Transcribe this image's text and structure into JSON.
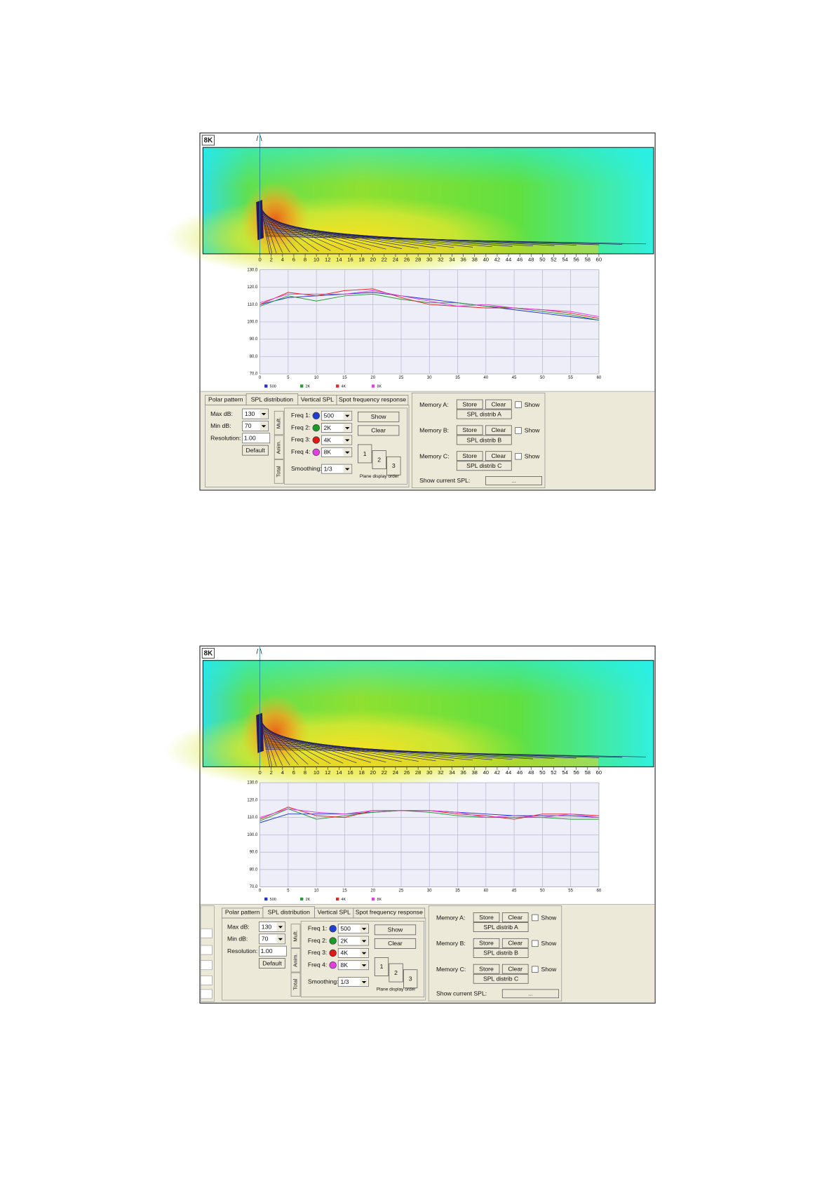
{
  "panels": [
    {
      "heatmap_label": "8K",
      "ruler_ticks": [
        0,
        2,
        4,
        6,
        8,
        10,
        12,
        14,
        16,
        18,
        20,
        22,
        24,
        26,
        28,
        30,
        32,
        34,
        36,
        38,
        40,
        42,
        44,
        46,
        48,
        50,
        52,
        54,
        56,
        58,
        60
      ]
    },
    {
      "heatmap_label": "8K",
      "ruler_ticks": [
        0,
        2,
        4,
        6,
        8,
        10,
        12,
        14,
        16,
        18,
        20,
        22,
        24,
        26,
        28,
        30,
        32,
        34,
        36,
        38,
        40,
        42,
        44,
        46,
        48,
        50,
        52,
        54,
        56,
        58,
        60
      ]
    }
  ],
  "chart_data": [
    {
      "type": "line",
      "x": [
        0,
        5,
        10,
        15,
        20,
        25,
        30,
        35,
        40,
        45,
        50,
        55,
        60
      ],
      "xlim": [
        0,
        60
      ],
      "xticks": [
        0,
        5,
        10,
        15,
        20,
        25,
        30,
        35,
        40,
        45,
        50,
        55,
        60
      ],
      "ylim": [
        70,
        130
      ],
      "yticks": [
        {
          "value": 130,
          "label": "130.0"
        },
        {
          "value": 120,
          "label": "120.0"
        },
        {
          "value": 110,
          "label": "110.0"
        },
        {
          "value": 100,
          "label": "100.0"
        },
        {
          "value": 90,
          "label": "90.0"
        },
        {
          "value": 80,
          "label": "80.0"
        },
        {
          "value": 70,
          "label": "70.0"
        }
      ],
      "grid": true,
      "series": [
        {
          "name": "500",
          "color": "#2030d0",
          "values": [
            110,
            114,
            115,
            116,
            117,
            115,
            113,
            111,
            109,
            107,
            105,
            103,
            101
          ]
        },
        {
          "name": "2K",
          "color": "#2a9a3a",
          "values": [
            109,
            115,
            112,
            115,
            116,
            113,
            111,
            111,
            109,
            108,
            106,
            104,
            101
          ]
        },
        {
          "name": "4K",
          "color": "#e02828",
          "values": [
            110,
            117,
            115,
            118,
            119,
            114,
            110,
            109,
            108,
            108,
            107,
            105,
            102
          ]
        },
        {
          "name": "8K",
          "color": "#e040e0",
          "values": [
            111,
            116,
            116,
            116,
            118,
            115,
            112,
            109,
            110,
            108,
            107,
            106,
            103
          ]
        }
      ]
    },
    {
      "type": "line",
      "x": [
        0,
        5,
        10,
        15,
        20,
        25,
        30,
        35,
        40,
        45,
        50,
        55,
        60
      ],
      "xlim": [
        0,
        60
      ],
      "xticks": [
        0,
        5,
        10,
        15,
        20,
        25,
        30,
        35,
        40,
        45,
        50,
        55,
        60
      ],
      "ylim": [
        70,
        130
      ],
      "yticks": [
        {
          "value": 130,
          "label": "130.0"
        },
        {
          "value": 120,
          "label": "120.0"
        },
        {
          "value": 110,
          "label": "110.0"
        },
        {
          "value": 100,
          "label": "100.0"
        },
        {
          "value": 90,
          "label": "90.0"
        },
        {
          "value": 80,
          "label": "80.0"
        },
        {
          "value": 70,
          "label": "70.0"
        }
      ],
      "grid": true,
      "series": [
        {
          "name": "500",
          "color": "#2030d0",
          "values": [
            107,
            112,
            112,
            112,
            113,
            114,
            114,
            113,
            112,
            111,
            111,
            111,
            110
          ]
        },
        {
          "name": "2K",
          "color": "#2a9a3a",
          "values": [
            108,
            115,
            109,
            111,
            113,
            114,
            113,
            111,
            110,
            110,
            110,
            109,
            109
          ]
        },
        {
          "name": "4K",
          "color": "#e02828",
          "values": [
            109,
            116,
            111,
            110,
            114,
            114,
            114,
            112,
            111,
            109,
            112,
            112,
            111
          ]
        },
        {
          "name": "8K",
          "color": "#e040e0",
          "values": [
            110,
            115,
            113,
            112,
            114,
            114,
            114,
            113,
            110,
            111,
            110,
            112,
            110
          ]
        }
      ]
    }
  ],
  "controls": {
    "tabs": [
      "Polar pattern",
      "SPL distribution",
      "Vertical SPL",
      "Spot frequency response"
    ],
    "max_db_label": "Max dB:",
    "max_db": "130",
    "min_db_label": "Min dB:",
    "min_db": "70",
    "resolution_label": "Resolution:",
    "resolution": "1.00",
    "default": "Default",
    "side_tabs": [
      "Mult.",
      "Anim.",
      "Total"
    ],
    "freqs": [
      {
        "label": "Freq 1:",
        "value": "500",
        "color": "#1f3fd0"
      },
      {
        "label": "Freq 2:",
        "value": "2K",
        "color": "#1a9a2a"
      },
      {
        "label": "Freq 3:",
        "value": "4K",
        "color": "#e01818"
      },
      {
        "label": "Freq 4:",
        "value": "8K",
        "color": "#e040e0"
      }
    ],
    "smoothing_label": "Smoothing:",
    "smoothing": "1/3",
    "show": "Show",
    "clear": "Clear",
    "order_buttons": [
      "1",
      "2",
      "3"
    ],
    "order_label": "Plane display order",
    "memories": [
      {
        "label": "Memory A:",
        "store": "Store",
        "clear": "Clear",
        "show": "Show",
        "name": "SPL distrib A"
      },
      {
        "label": "Memory B:",
        "store": "Store",
        "clear": "Clear",
        "show": "Show",
        "name": "SPL distrib B"
      },
      {
        "label": "Memory C:",
        "store": "Store",
        "clear": "Clear",
        "show": "Show",
        "name": "SPL distrib C"
      }
    ],
    "show_current": "Show current SPL:",
    "show_current_btn": "..."
  }
}
